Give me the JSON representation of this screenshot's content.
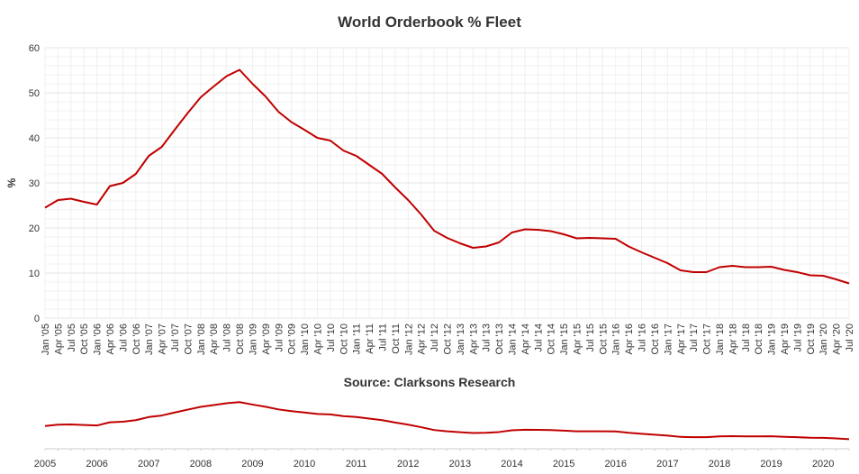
{
  "chart_data": {
    "type": "line",
    "title": "World Orderbook % Fleet",
    "subtitle": "Source: Clarksons Research",
    "ylabel": "%",
    "xlabel": "",
    "ylim": [
      0,
      60
    ],
    "yticks": [
      0,
      10,
      20,
      30,
      40,
      50,
      60
    ],
    "grid": true,
    "legend": "none",
    "x": [
      "Jan '05",
      "Apr '05",
      "Jul '05",
      "Oct '05",
      "Jan '06",
      "Apr '06",
      "Jul '06",
      "Oct '06",
      "Jan '07",
      "Apr '07",
      "Jul '07",
      "Oct '07",
      "Jan '08",
      "Apr '08",
      "Jul '08",
      "Oct '08",
      "Jan '09",
      "Apr '09",
      "Jul '09",
      "Oct '09",
      "Jan '10",
      "Apr '10",
      "Jul '10",
      "Oct '10",
      "Jan '11",
      "Apr '11",
      "Jul '11",
      "Oct '11",
      "Jan '12",
      "Apr '12",
      "Jul '12",
      "Oct '12",
      "Jan '13",
      "Apr '13",
      "Jul '13",
      "Oct '13",
      "Jan '14",
      "Apr '14",
      "Jul '14",
      "Oct '14",
      "Jan '15",
      "Apr '15",
      "Jul '15",
      "Oct '15",
      "Jan '16",
      "Apr '16",
      "Jul '16",
      "Oct '16",
      "Jan '17",
      "Apr '17",
      "Jul '17",
      "Oct '17",
      "Jan '18",
      "Apr '18",
      "Jul '18",
      "Oct '18",
      "Jan '19",
      "Apr '19",
      "Jul '19",
      "Oct '19",
      "Jan '20",
      "Apr '20",
      "Jul '20"
    ],
    "series": [
      {
        "values": [
          24.5,
          26.2,
          26.5,
          25.8,
          25.2,
          29.3,
          30.0,
          32.0,
          36.0,
          38.0,
          41.8,
          45.5,
          49.0,
          51.4,
          53.7,
          55.1,
          52.0,
          49.2,
          45.8,
          43.5,
          41.8,
          40.0,
          39.4,
          37.2,
          36.0,
          34.0,
          32.0,
          29.0,
          26.2,
          23.0,
          19.4,
          17.8,
          16.6,
          15.6,
          15.9,
          16.8,
          19.0,
          19.7,
          19.6,
          19.3,
          18.6,
          17.7,
          17.8,
          17.7,
          17.6,
          15.9,
          14.6,
          13.4,
          12.2,
          10.6,
          10.2,
          10.2,
          11.3,
          11.6,
          11.3,
          11.3,
          11.4,
          10.7,
          10.2,
          9.5,
          9.4,
          8.6,
          7.7
        ],
        "color": "#c00000"
      }
    ],
    "navigator": {
      "labels": [
        "2005",
        "2006",
        "2007",
        "2008",
        "2009",
        "2010",
        "2011",
        "2012",
        "2013",
        "2014",
        "2015",
        "2016",
        "2017",
        "2018",
        "2019",
        "2020"
      ]
    }
  }
}
